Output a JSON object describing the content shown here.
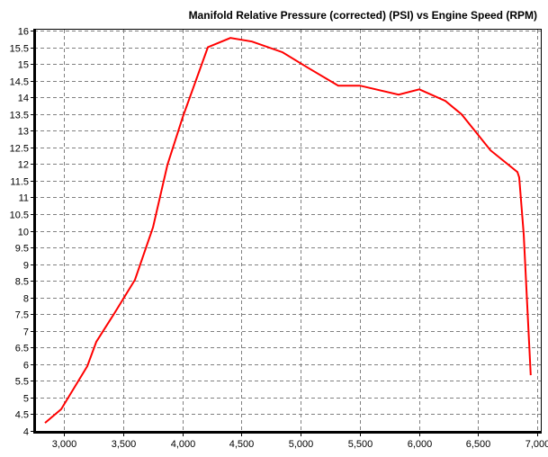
{
  "chart_data": {
    "type": "line",
    "title": "Manifold Relative Pressure (corrected) (PSI) vs Engine Speed (RPM)",
    "xlabel": "Engine Speed (RPM)",
    "ylabel": "Manifold Relative Pressure (corrected) (PSI)",
    "xlim": [
      2757,
      7030
    ],
    "ylim": [
      4,
      16
    ],
    "x_ticks": [
      3000,
      3500,
      4000,
      4500,
      5000,
      5500,
      6000,
      6500,
      7000
    ],
    "x_tick_labels": [
      "3,000",
      "3,500",
      "4,000",
      "4,500",
      "5,000",
      "5,500",
      "6,000",
      "6,500",
      "7,000"
    ],
    "y_ticks": [
      4,
      4.5,
      5,
      5.5,
      6,
      6.5,
      7,
      7.5,
      8,
      8.5,
      9,
      9.5,
      10,
      10.5,
      11,
      11.5,
      12,
      12.5,
      13,
      13.5,
      14,
      14.5,
      15,
      15.5,
      16
    ],
    "y_tick_labels": [
      "4",
      "4.5",
      "5",
      "5.5",
      "6",
      "6.5",
      "7",
      "7.5",
      "8",
      "8.5",
      "9",
      "9.5",
      "10",
      "10.5",
      "11",
      "11.5",
      "12",
      "12.5",
      "13",
      "13.5",
      "14",
      "14.5",
      "15",
      "15.5",
      "16"
    ],
    "grid": true,
    "legend": null,
    "series": [
      {
        "name": "Manifold Relative Pressure (corrected) (PSI)",
        "color": "#ff0000",
        "x": [
          2840,
          2977,
          3198,
          3274,
          3433,
          3601,
          3753,
          3875,
          4004,
          4217,
          4407,
          4589,
          4848,
          5061,
          5319,
          5502,
          5829,
          6004,
          6224,
          6361,
          6605,
          6833,
          6848,
          6886,
          6945
        ],
        "y": [
          4.24,
          4.65,
          5.94,
          6.67,
          7.56,
          8.53,
          10.1,
          11.98,
          13.4,
          15.5,
          15.78,
          15.67,
          15.35,
          14.89,
          14.35,
          14.35,
          14.08,
          14.24,
          13.89,
          13.49,
          12.41,
          11.76,
          11.6,
          9.9,
          5.67
        ]
      }
    ]
  },
  "colors": {
    "line": "#ff0000",
    "grid": "#808080",
    "axis": "#000000",
    "background": "#ffffff"
  }
}
